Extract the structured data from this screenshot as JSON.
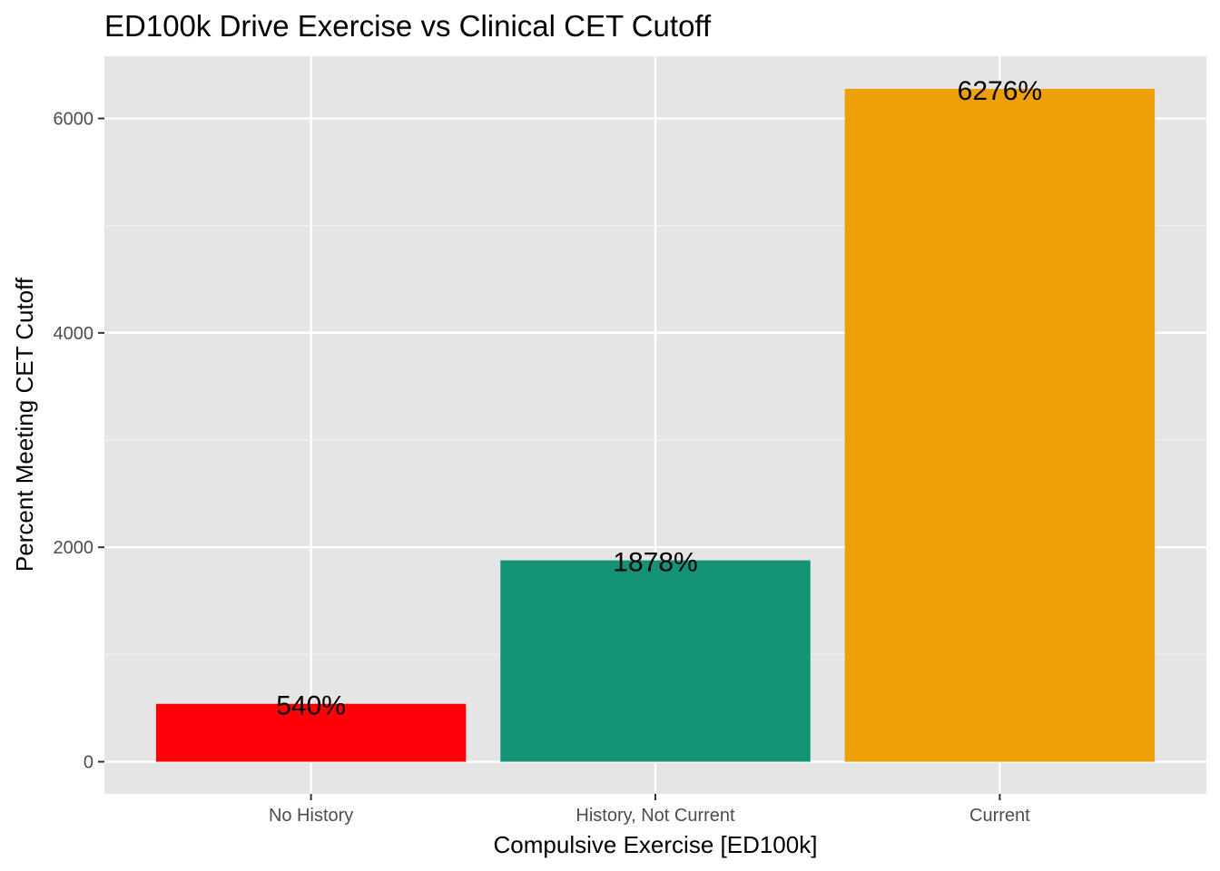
{
  "chart_data": {
    "type": "bar",
    "title": "ED100k Drive Exercise vs Clinical CET Cutoff",
    "xlabel": "Compulsive Exercise  [ED100k]",
    "ylabel": "Percent Meeting CET Cutoff",
    "categories": [
      "No History",
      "History, Not Current",
      "Current"
    ],
    "values": [
      540,
      1878,
      6276
    ],
    "data_labels": [
      "540%",
      "1878%",
      "6276%"
    ],
    "colors": [
      "#ff0008",
      "#149377",
      "#eea009"
    ],
    "ylim": [
      -300,
      6580
    ],
    "yticks": [
      0,
      2000,
      4000,
      6000
    ],
    "grid": true,
    "panel_background": "#e5e5e5",
    "legend": "none"
  }
}
